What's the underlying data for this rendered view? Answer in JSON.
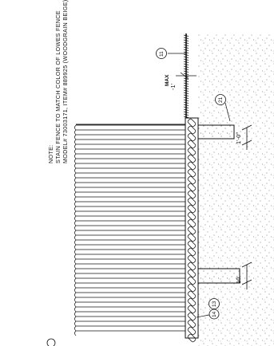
{
  "note": {
    "heading": "NOTE:",
    "line1": "STAIN FENCE TO MATCH COLOR OF LOWES FENCE",
    "line2": "MODEL# 73003171, ITEM# 889925 (WOODGRAIN BEIGE)."
  },
  "dimensions": {
    "post_spacing_left": "10'",
    "post_spacing_right": "1'-0\"",
    "height_label": "-1'",
    "max_label": "MAX"
  },
  "callouts": {
    "top": "11",
    "post": "21",
    "bottom_a": "13",
    "bottom_b": "14"
  },
  "colors": {
    "line": "#111111",
    "soil_dots": "#6a6a6a"
  }
}
